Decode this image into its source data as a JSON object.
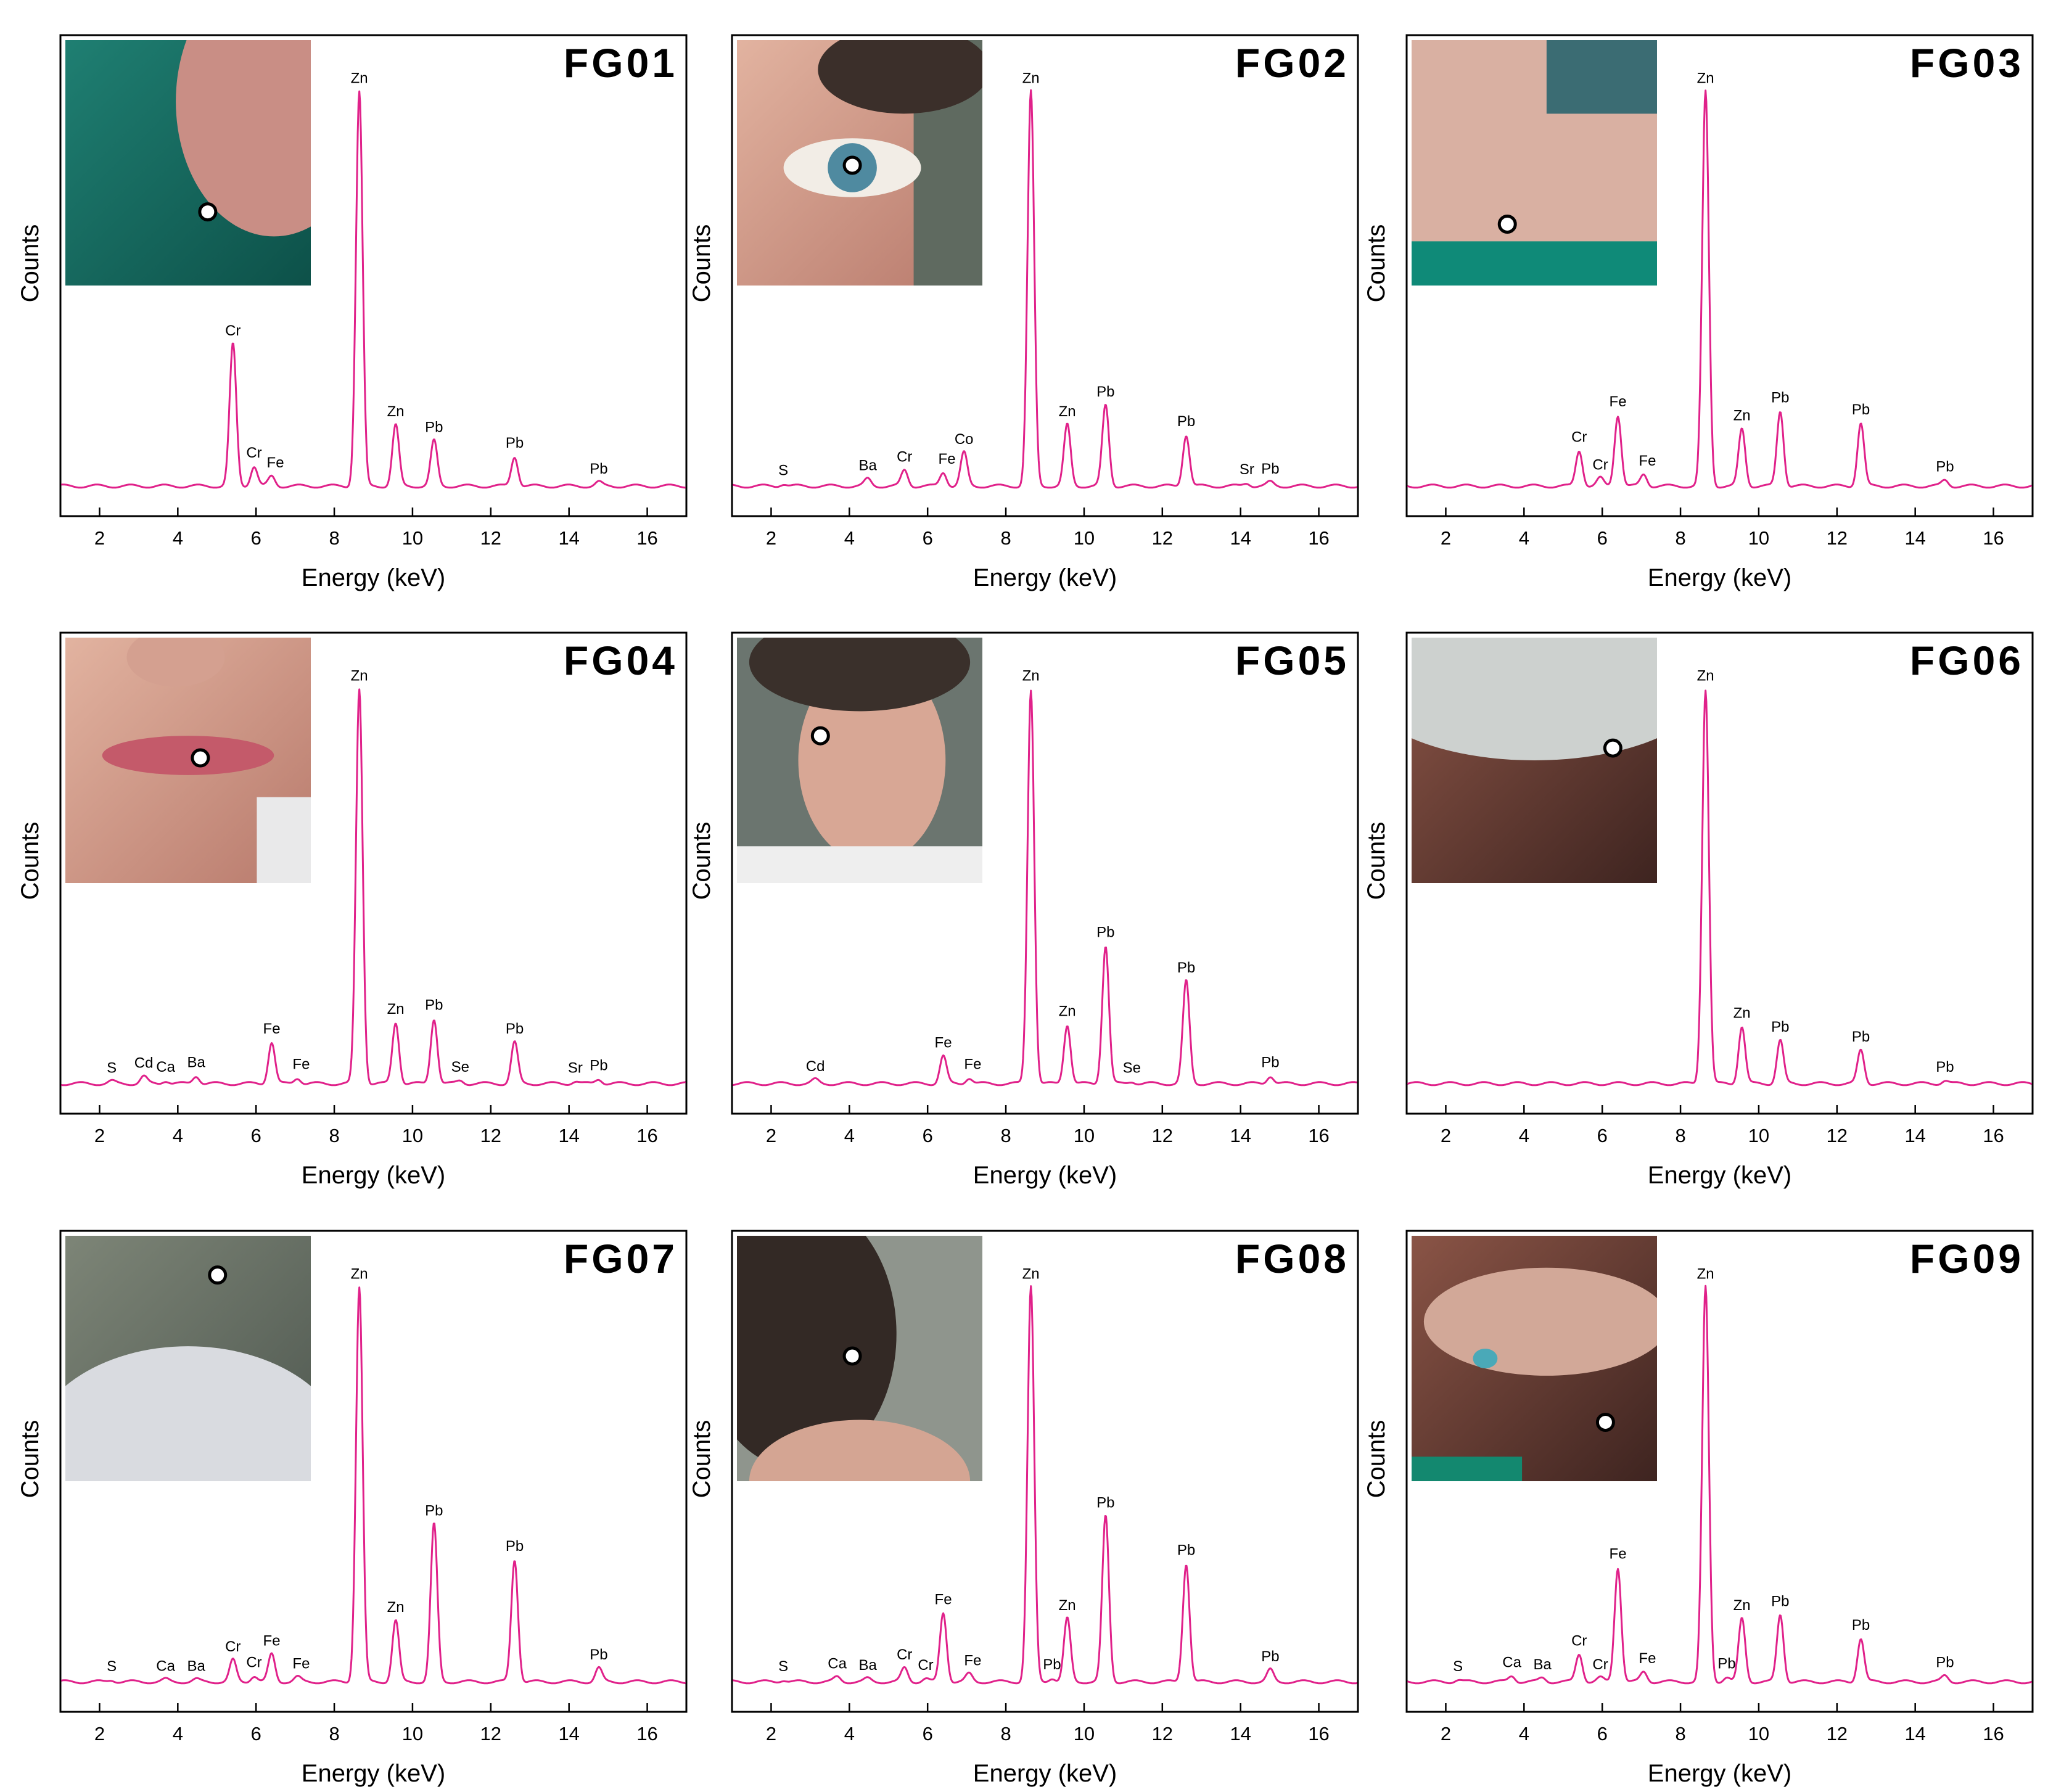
{
  "chart_data": [
    {
      "type": "line",
      "title": "FG01",
      "xlabel": "Energy (keV)",
      "ylabel": "Counts",
      "xlim": [
        1,
        17
      ],
      "xticks": [
        2,
        4,
        6,
        8,
        10,
        12,
        14,
        16
      ],
      "grid": false,
      "series": [
        {
          "color": "#e0218a"
        }
      ],
      "inset": {
        "scene": "teal-jacket-and-skin",
        "marker": [
          0.58,
          0.7
        ]
      },
      "peaks": [
        {
          "label": "Cr",
          "x": 5.41,
          "y": 0.36
        },
        {
          "label": "Cr",
          "x": 5.95,
          "y": 0.05
        },
        {
          "label": "Fe",
          "x": 6.4,
          "y": 0.025
        },
        {
          "label": "Zn",
          "x": 8.64,
          "y": 1.0
        },
        {
          "label": "Zn",
          "x": 9.57,
          "y": 0.155
        },
        {
          "label": "Pb",
          "x": 10.55,
          "y": 0.115
        },
        {
          "label": "Pb",
          "x": 12.61,
          "y": 0.075
        },
        {
          "label": "Pb",
          "x": 14.76,
          "y": 0.01
        }
      ]
    },
    {
      "type": "line",
      "title": "FG02",
      "xlabel": "Energy (keV)",
      "ylabel": "Counts",
      "xlim": [
        1,
        17
      ],
      "xticks": [
        2,
        4,
        6,
        8,
        10,
        12,
        14,
        16
      ],
      "grid": false,
      "series": [
        {
          "color": "#e0218a"
        }
      ],
      "inset": {
        "scene": "eye",
        "marker": [
          0.47,
          0.51
        ]
      },
      "peaks": [
        {
          "label": "S",
          "x": 2.31,
          "y": 0.006
        },
        {
          "label": "Ba",
          "x": 4.47,
          "y": 0.018
        },
        {
          "label": "Cr",
          "x": 5.41,
          "y": 0.04
        },
        {
          "label": "Fe",
          "x": 6.4,
          "y": 0.035
        },
        {
          "label": "Co",
          "x": 6.93,
          "y": 0.085
        },
        {
          "label": "Zn",
          "x": 8.64,
          "y": 1.0
        },
        {
          "label": "Zn",
          "x": 9.57,
          "y": 0.155
        },
        {
          "label": "Pb",
          "x": 10.55,
          "y": 0.205
        },
        {
          "label": "Pb",
          "x": 12.61,
          "y": 0.13
        },
        {
          "label": "Sr",
          "x": 14.16,
          "y": 0.008
        },
        {
          "label": "Pb",
          "x": 14.76,
          "y": 0.01
        }
      ]
    },
    {
      "type": "line",
      "title": "FG03",
      "xlabel": "Energy (keV)",
      "ylabel": "Counts",
      "xlim": [
        1,
        17
      ],
      "xticks": [
        2,
        4,
        6,
        8,
        10,
        12,
        14,
        16
      ],
      "grid": false,
      "series": [
        {
          "color": "#e0218a"
        }
      ],
      "inset": {
        "scene": "arm-and-teal-fabric",
        "marker": [
          0.39,
          0.75
        ]
      },
      "peaks": [
        {
          "label": "Cr",
          "x": 5.41,
          "y": 0.09
        },
        {
          "label": "Cr",
          "x": 5.95,
          "y": 0.02
        },
        {
          "label": "Fe",
          "x": 6.4,
          "y": 0.18
        },
        {
          "label": "Fe",
          "x": 7.06,
          "y": 0.03
        },
        {
          "label": "Zn",
          "x": 8.64,
          "y": 1.0
        },
        {
          "label": "Zn",
          "x": 9.57,
          "y": 0.145
        },
        {
          "label": "Pb",
          "x": 10.55,
          "y": 0.19
        },
        {
          "label": "Pb",
          "x": 12.61,
          "y": 0.16
        },
        {
          "label": "Pb",
          "x": 14.76,
          "y": 0.015
        }
      ]
    },
    {
      "type": "line",
      "title": "FG04",
      "xlabel": "Energy (keV)",
      "ylabel": "Counts",
      "xlim": [
        1,
        17
      ],
      "xticks": [
        2,
        4,
        6,
        8,
        10,
        12,
        14,
        16
      ],
      "grid": false,
      "series": [
        {
          "color": "#e0218a"
        }
      ],
      "inset": {
        "scene": "lips",
        "marker": [
          0.55,
          0.49
        ]
      },
      "peaks": [
        {
          "label": "S",
          "x": 2.31,
          "y": 0.006
        },
        {
          "label": "Cd",
          "x": 3.13,
          "y": 0.018
        },
        {
          "label": "Ca",
          "x": 3.69,
          "y": 0.008
        },
        {
          "label": "Ba",
          "x": 4.47,
          "y": 0.02
        },
        {
          "label": "Fe",
          "x": 6.4,
          "y": 0.105
        },
        {
          "label": "Fe",
          "x": 7.06,
          "y": 0.015
        },
        {
          "label": "Zn",
          "x": 8.64,
          "y": 1.0
        },
        {
          "label": "Zn",
          "x": 9.57,
          "y": 0.155
        },
        {
          "label": "Pb",
          "x": 10.55,
          "y": 0.165
        },
        {
          "label": "Se",
          "x": 11.22,
          "y": 0.008
        },
        {
          "label": "Pb",
          "x": 12.61,
          "y": 0.105
        },
        {
          "label": "Sr",
          "x": 14.16,
          "y": 0.006
        },
        {
          "label": "Pb",
          "x": 14.76,
          "y": 0.012
        }
      ]
    },
    {
      "type": "line",
      "title": "FG05",
      "xlabel": "Energy (keV)",
      "ylabel": "Counts",
      "xlim": [
        1,
        17
      ],
      "xticks": [
        2,
        4,
        6,
        8,
        10,
        12,
        14,
        16
      ],
      "grid": false,
      "series": [
        {
          "color": "#e0218a"
        }
      ],
      "inset": {
        "scene": "face",
        "marker": [
          0.34,
          0.4
        ]
      },
      "peaks": [
        {
          "label": "Cd",
          "x": 3.13,
          "y": 0.01
        },
        {
          "label": "Fe",
          "x": 6.4,
          "y": 0.07
        },
        {
          "label": "Fe",
          "x": 7.06,
          "y": 0.015
        },
        {
          "label": "Zn",
          "x": 8.64,
          "y": 1.0
        },
        {
          "label": "Zn",
          "x": 9.57,
          "y": 0.15
        },
        {
          "label": "Pb",
          "x": 10.55,
          "y": 0.35
        },
        {
          "label": "Se",
          "x": 11.22,
          "y": 0.006
        },
        {
          "label": "Pb",
          "x": 12.61,
          "y": 0.26
        },
        {
          "label": "Pb",
          "x": 14.76,
          "y": 0.02
        }
      ]
    },
    {
      "type": "line",
      "title": "FG06",
      "xlabel": "Energy (keV)",
      "ylabel": "Counts",
      "xlim": [
        1,
        17
      ],
      "xticks": [
        2,
        4,
        6,
        8,
        10,
        12,
        14,
        16
      ],
      "grid": false,
      "series": [
        {
          "color": "#e0218a"
        }
      ],
      "inset": {
        "scene": "white-cloth-over-brown",
        "marker": [
          0.82,
          0.45
        ]
      },
      "peaks": [
        {
          "label": "Zn",
          "x": 8.64,
          "y": 1.0
        },
        {
          "label": "Zn",
          "x": 9.57,
          "y": 0.145
        },
        {
          "label": "Pb",
          "x": 10.55,
          "y": 0.11
        },
        {
          "label": "Pb",
          "x": 12.61,
          "y": 0.085
        },
        {
          "label": "Pb",
          "x": 14.76,
          "y": 0.008
        }
      ]
    },
    {
      "type": "line",
      "title": "FG07",
      "xlabel": "Energy (keV)",
      "ylabel": "Counts",
      "xlim": [
        1,
        17
      ],
      "xticks": [
        2,
        4,
        6,
        8,
        10,
        12,
        14,
        16
      ],
      "grid": false,
      "series": [
        {
          "color": "#e0218a"
        }
      ],
      "inset": {
        "scene": "grey-background-and-white-sleeve",
        "marker": [
          0.62,
          0.16
        ]
      },
      "peaks": [
        {
          "label": "S",
          "x": 2.31,
          "y": 0.005
        },
        {
          "label": "Ca",
          "x": 3.69,
          "y": 0.006
        },
        {
          "label": "Ba",
          "x": 4.47,
          "y": 0.006
        },
        {
          "label": "Cr",
          "x": 5.41,
          "y": 0.055
        },
        {
          "label": "Cr",
          "x": 5.95,
          "y": 0.015
        },
        {
          "label": "Fe",
          "x": 6.4,
          "y": 0.07
        },
        {
          "label": "Fe",
          "x": 7.06,
          "y": 0.012
        },
        {
          "label": "Zn",
          "x": 8.64,
          "y": 1.0
        },
        {
          "label": "Zn",
          "x": 9.57,
          "y": 0.155
        },
        {
          "label": "Pb",
          "x": 10.55,
          "y": 0.4
        },
        {
          "label": "Pb",
          "x": 12.61,
          "y": 0.31
        },
        {
          "label": "Pb",
          "x": 14.76,
          "y": 0.035
        }
      ]
    },
    {
      "type": "line",
      "title": "FG08",
      "xlabel": "Energy (keV)",
      "ylabel": "Counts",
      "xlim": [
        1,
        17
      ],
      "xticks": [
        2,
        4,
        6,
        8,
        10,
        12,
        14,
        16
      ],
      "grid": false,
      "series": [
        {
          "color": "#e0218a"
        }
      ],
      "inset": {
        "scene": "hair-and-eye",
        "marker": [
          0.47,
          0.49
        ]
      },
      "peaks": [
        {
          "label": "S",
          "x": 2.31,
          "y": 0.005
        },
        {
          "label": "Ca",
          "x": 3.69,
          "y": 0.012
        },
        {
          "label": "Ba",
          "x": 4.47,
          "y": 0.008
        },
        {
          "label": "Cr",
          "x": 5.41,
          "y": 0.035
        },
        {
          "label": "Cr",
          "x": 5.95,
          "y": 0.008
        },
        {
          "label": "Fe",
          "x": 6.4,
          "y": 0.175
        },
        {
          "label": "Fe",
          "x": 7.06,
          "y": 0.02
        },
        {
          "label": "Zn",
          "x": 8.64,
          "y": 1.0
        },
        {
          "label": "Pb",
          "x": 9.18,
          "y": 0.01
        },
        {
          "label": "Zn",
          "x": 9.57,
          "y": 0.16
        },
        {
          "label": "Pb",
          "x": 10.55,
          "y": 0.42
        },
        {
          "label": "Pb",
          "x": 12.61,
          "y": 0.3
        },
        {
          "label": "Pb",
          "x": 14.76,
          "y": 0.03
        }
      ]
    },
    {
      "type": "line",
      "title": "FG09",
      "xlabel": "Energy (keV)",
      "ylabel": "Counts",
      "xlim": [
        1,
        17
      ],
      "xticks": [
        2,
        4,
        6,
        8,
        10,
        12,
        14,
        16
      ],
      "grid": false,
      "series": [
        {
          "color": "#e0218a"
        }
      ],
      "inset": {
        "scene": "hands-with-ring",
        "marker": [
          0.79,
          0.76
        ]
      },
      "peaks": [
        {
          "label": "S",
          "x": 2.31,
          "y": 0.005
        },
        {
          "label": "Ca",
          "x": 3.69,
          "y": 0.015
        },
        {
          "label": "Ba",
          "x": 4.47,
          "y": 0.01
        },
        {
          "label": "Cr",
          "x": 5.41,
          "y": 0.07
        },
        {
          "label": "Cr",
          "x": 5.95,
          "y": 0.01
        },
        {
          "label": "Fe",
          "x": 6.4,
          "y": 0.29
        },
        {
          "label": "Fe",
          "x": 7.06,
          "y": 0.025
        },
        {
          "label": "Zn",
          "x": 8.64,
          "y": 1.0
        },
        {
          "label": "Pb",
          "x": 9.18,
          "y": 0.012
        },
        {
          "label": "Zn",
          "x": 9.57,
          "y": 0.16
        },
        {
          "label": "Pb",
          "x": 10.55,
          "y": 0.17
        },
        {
          "label": "Pb",
          "x": 12.61,
          "y": 0.11
        },
        {
          "label": "Pb",
          "x": 14.76,
          "y": 0.015
        }
      ]
    }
  ]
}
